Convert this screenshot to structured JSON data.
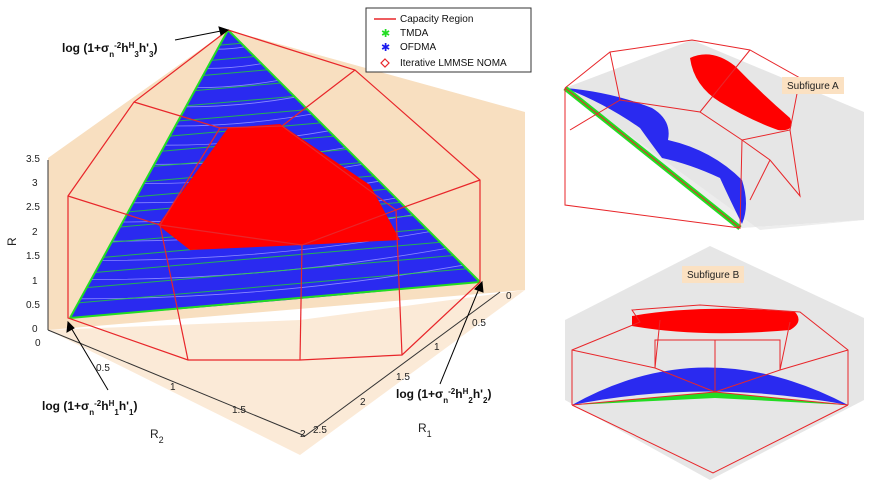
{
  "chart_data": [
    {
      "type": "scatter3d",
      "title": "",
      "xlabel": "R_1",
      "ylabel": "R_2",
      "zlabel": "R_3",
      "ticks": {
        "R1": [
          "0",
          "0.5",
          "1",
          "1.5",
          "2",
          "2.5"
        ],
        "R2": [
          "0",
          "0.5",
          "1",
          "1.5",
          "2"
        ],
        "R3": [
          "0",
          "0.5",
          "1",
          "1.5",
          "2",
          "2.5",
          "3",
          "3.5"
        ]
      },
      "legend": {
        "placement": "top-right",
        "entries": [
          {
            "name": "Capacity Region",
            "color": "#e8262a",
            "marker": "line"
          },
          {
            "name": "TMDA",
            "color": "#22dd22",
            "marker": "star"
          },
          {
            "name": "OFDMA",
            "color": "#1a1aee",
            "marker": "star"
          },
          {
            "name": "Iterative LMMSE NOMA",
            "color": "#e8262a",
            "marker": "diamond"
          }
        ]
      },
      "annotations": {
        "top": {
          "main": "log (1+σ",
          "sub1": "n",
          "sup1": "-2",
          "mid": "h",
          "sup2": "H",
          "rest": "3",
          "end": "h'",
          "sub3": "3",
          ")": ")"
        },
        "left": {
          "main": "log (1+σ",
          "sub1": "n",
          "sup1": "-2",
          "mid": "h",
          "sup2": "H",
          "rest": "1",
          "end": "h'",
          "sub3": "1"
        },
        "right": {
          "main": "log (1+σ",
          "sub1": "n",
          "sup1": "-2",
          "mid": "h",
          "sup2": "H",
          "rest": "2",
          "end": "h'",
          "sub3": "2"
        }
      }
    },
    {
      "type": "scatter3d",
      "title": "Subfigure A"
    },
    {
      "type": "scatter3d",
      "title": "Subfigure B"
    }
  ],
  "colors": {
    "capacity": "#e8262a",
    "tmda": "#22dd22",
    "ofdma": "#1a1aee",
    "noma": "#ff0000",
    "wall": "#f8dfc0",
    "floor": "#fbead7",
    "grayPane": "#e6e6e6"
  }
}
